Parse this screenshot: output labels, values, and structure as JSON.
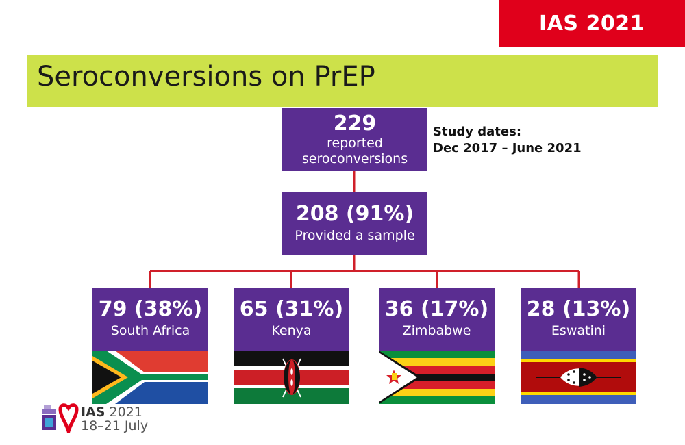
{
  "badge": {
    "text": "IAS 2021",
    "color": "#e0001b"
  },
  "title": "Seroconversions on PrEP",
  "study": {
    "line1": "Study dates:",
    "line2": "Dec 2017 – June 2021"
  },
  "top_box": {
    "number": "229",
    "line1": "reported",
    "line2": "seroconversions"
  },
  "second_box": {
    "number": "208 (91%)",
    "label": "Provided a sample"
  },
  "countries": [
    {
      "number": "79 (38%)",
      "label": "South Africa",
      "flag": "south-africa-flag"
    },
    {
      "number": "65 (31%)",
      "label": "Kenya",
      "flag": "kenya-flag"
    },
    {
      "number": "36 (17%)",
      "label": "Zimbabwe",
      "flag": "zimbabwe-flag"
    },
    {
      "number": "28 (13%)",
      "label": "Eswatini",
      "flag": "eswatini-flag"
    }
  ],
  "footer": {
    "brand": "IAS",
    "year": "2021",
    "dates": "18–21 July"
  },
  "colors": {
    "box": "#5a2d91",
    "title_bar": "#cde14a",
    "connector": "#d0202a"
  }
}
